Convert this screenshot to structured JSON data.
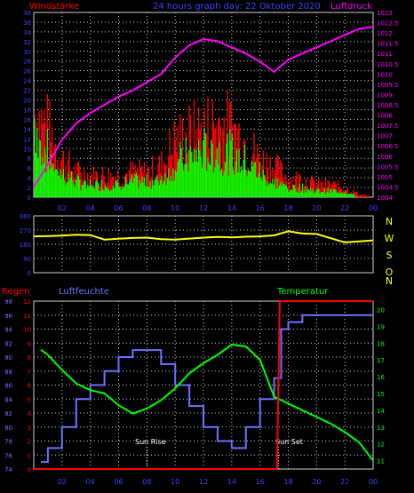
{
  "colors": {
    "background": "#000000",
    "grid": "#d0d0d0",
    "tick_text": "#4040ff",
    "pressure": "#ff00ff",
    "wind_gust": "#ff0000",
    "wind_mean": "#00ff00",
    "direction": "#ffff00",
    "rain": "#ff0000",
    "humidity": "#7070ff",
    "temperature": "#00ff00",
    "sun_label": "#ffffff"
  },
  "header": {
    "left": "Windstärke",
    "center": "24 hours graph day: 22 Oktober 2020",
    "right": "Luftdruck"
  },
  "labels": {
    "regen": "Regen",
    "luftfeuchte": "Luftfeuchte",
    "temperatur": "Temperatur",
    "sunrise": "Sun Rise",
    "sunset": "Sun Set"
  },
  "chart_data": [
    {
      "type": "line",
      "panel": "wind_pressure",
      "x_ticks": [
        "02",
        "04",
        "06",
        "08",
        "10",
        "12",
        "14",
        "16",
        "18",
        "20",
        "22",
        "00"
      ],
      "left_axis": {
        "ticks": [
          0,
          2,
          4,
          6,
          8,
          10,
          12,
          14,
          16,
          18,
          20,
          22,
          24,
          26,
          28,
          30,
          32,
          34,
          36,
          38
        ],
        "range": [
          0,
          38
        ]
      },
      "right_axis": {
        "ticks": [
          "1004",
          "1004.5",
          "1005",
          "1005.5",
          "1006",
          "1006.5",
          "1007",
          "1007.5",
          "1008",
          "1008.5",
          "1009",
          "1009.5",
          "1010",
          "1010.5",
          "1011",
          "1011.5",
          "1012",
          "1012.5",
          "1013"
        ],
        "range": [
          1004,
          1013
        ]
      },
      "series": [
        {
          "name": "Luftdruck",
          "axis": "right",
          "x": [
            0,
            1,
            2,
            3,
            4,
            5,
            6,
            7,
            8,
            9,
            10,
            11,
            12,
            13,
            14,
            15,
            16,
            17,
            18,
            19,
            20,
            21,
            22,
            23,
            24
          ],
          "values": [
            1004.5,
            1005.6,
            1006.8,
            1007.6,
            1008.1,
            1008.5,
            1008.9,
            1009.2,
            1009.6,
            1010.0,
            1010.8,
            1011.4,
            1011.7,
            1011.6,
            1011.3,
            1011.0,
            1010.6,
            1010.1,
            1010.7,
            1011.0,
            1011.3,
            1011.6,
            1011.9,
            1012.2,
            1012.3
          ]
        }
      ],
      "wind_gust_peak": [
        28,
        22,
        12,
        8,
        7,
        7,
        7,
        8,
        8,
        10,
        18,
        20,
        22,
        24,
        22,
        18,
        12,
        10,
        6,
        6,
        4,
        4,
        3,
        1,
        0
      ],
      "wind_mean_peak": [
        24,
        14,
        8,
        5,
        4,
        4,
        4,
        5,
        5,
        6,
        11,
        13,
        15,
        15,
        14,
        11,
        8,
        5,
        3,
        3,
        2,
        2,
        2,
        0,
        0
      ]
    },
    {
      "type": "line",
      "panel": "direction",
      "x_ticks": [
        "02",
        "04",
        "06",
        "08",
        "10",
        "12",
        "14",
        "16",
        "18",
        "20",
        "22",
        "00"
      ],
      "left_axis": {
        "ticks": [
          0,
          90,
          180,
          270,
          360
        ],
        "range": [
          0,
          360
        ]
      },
      "right_labels": [
        "N",
        "W",
        "S",
        "O",
        "N"
      ],
      "series": [
        {
          "name": "Windrichtung",
          "x": [
            0,
            1,
            2,
            3,
            4,
            5,
            6,
            7,
            8,
            9,
            10,
            11,
            12,
            13,
            14,
            15,
            16,
            17,
            18,
            19,
            20,
            21,
            22,
            23,
            24
          ],
          "values": [
            230,
            232,
            235,
            240,
            238,
            210,
            215,
            220,
            222,
            212,
            210,
            216,
            222,
            226,
            224,
            228,
            230,
            236,
            262,
            248,
            245,
            218,
            192,
            198,
            205
          ]
        }
      ]
    },
    {
      "type": "line",
      "panel": "humidity_temperature",
      "x_ticks": [
        "02",
        "04",
        "06",
        "08",
        "10",
        "12",
        "14",
        "16",
        "18",
        "20",
        "22",
        "00"
      ],
      "left_axis_rain": {
        "ticks": [
          0,
          1,
          2,
          3,
          4,
          5,
          6,
          7,
          8,
          9,
          10,
          11,
          12
        ],
        "range": [
          0,
          12
        ]
      },
      "left_axis_humidity": {
        "ticks": [
          74,
          76,
          78,
          80,
          82,
          84,
          86,
          88,
          90,
          92,
          94,
          96,
          98
        ],
        "range": [
          74,
          98
        ]
      },
      "right_axis_temperature": {
        "ticks": [
          11,
          12,
          13,
          14,
          15,
          16,
          17,
          18,
          19,
          20
        ],
        "range": [
          10.5,
          20.5
        ]
      },
      "series": [
        {
          "name": "Luftfeuchte",
          "axis": "humidity",
          "x": [
            0.5,
            1,
            2,
            3,
            4,
            5,
            6,
            7,
            8,
            9,
            10,
            11,
            12,
            13,
            14,
            15,
            16,
            17,
            17.5,
            18,
            19,
            20,
            21,
            22,
            23,
            24
          ],
          "values": [
            75,
            77,
            80,
            84,
            86,
            88,
            90,
            91,
            91,
            89,
            86,
            83,
            80,
            78,
            77,
            80,
            84,
            87,
            94,
            95,
            96,
            96,
            96,
            96,
            96,
            96
          ]
        },
        {
          "name": "Temperatur",
          "axis": "temperature",
          "x": [
            0.5,
            1,
            2,
            3,
            4,
            5,
            6,
            7,
            8,
            9,
            10,
            11,
            12,
            13,
            14,
            15,
            16,
            17,
            18,
            19,
            20,
            21,
            22,
            23,
            24
          ],
          "values": [
            17.6,
            17.3,
            16.4,
            15.6,
            15.2,
            15.0,
            14.3,
            13.8,
            14.1,
            14.6,
            15.3,
            16.2,
            16.8,
            17.3,
            17.9,
            17.8,
            17.0,
            14.8,
            14.4,
            14.0,
            13.6,
            13.2,
            12.7,
            12.1,
            11.0
          ]
        },
        {
          "name": "Regen",
          "axis": "rain",
          "x": [
            0,
            17.2,
            17.4,
            24
          ],
          "values": [
            0,
            0,
            12,
            12
          ]
        }
      ],
      "annotations": [
        {
          "text": "Sun Rise",
          "x": 8
        },
        {
          "text": "Sun Set",
          "x": 17.3
        }
      ]
    }
  ]
}
